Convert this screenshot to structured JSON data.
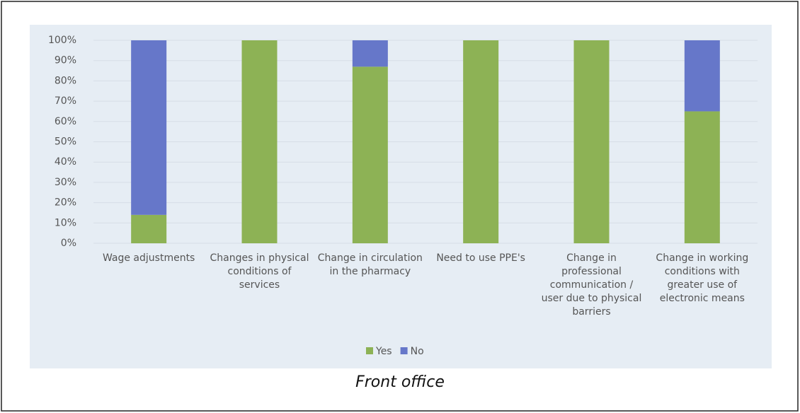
{
  "chart_data": {
    "type": "stacked_bar",
    "caption": "Front office",
    "categories": [
      "Wage adjustments",
      "Changes in physical conditions of services",
      "Change in circulation in the pharmacy",
      "Need to use PPE's",
      "Change in professional communication / user due to physical barriers",
      "Change in working conditions with greater use of electronic means"
    ],
    "series": [
      {
        "name": "Yes",
        "color": "#8db255",
        "values": [
          14,
          100,
          87,
          100,
          100,
          65
        ]
      },
      {
        "name": "No",
        "color": "#6677c9",
        "values": [
          86,
          0,
          13,
          0,
          0,
          35
        ]
      }
    ],
    "ylim": [
      0,
      100
    ],
    "yticks": [
      {
        "value": 0,
        "label": "0%"
      },
      {
        "value": 10,
        "label": "10%"
      },
      {
        "value": 20,
        "label": "20%"
      },
      {
        "value": 30,
        "label": "30%"
      },
      {
        "value": 40,
        "label": "40%"
      },
      {
        "value": 50,
        "label": "50%"
      },
      {
        "value": 60,
        "label": "60%"
      },
      {
        "value": 70,
        "label": "70%"
      },
      {
        "value": 80,
        "label": "80%"
      },
      {
        "value": 90,
        "label": "90%"
      },
      {
        "value": 100,
        "label": "100%"
      }
    ],
    "grid": true,
    "legend": "bottom"
  }
}
